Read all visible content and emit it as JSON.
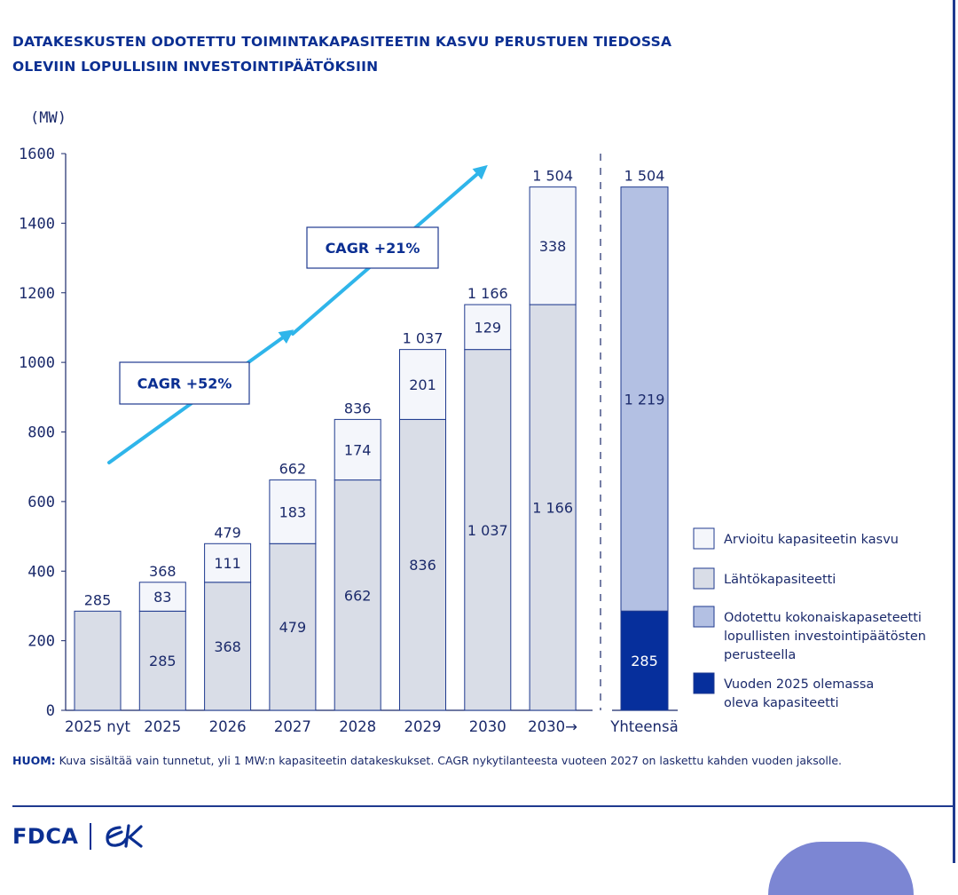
{
  "title": {
    "line1": "DATAKESKUSTEN ODOTETTU TOIMINTAKAPASITEETIN KASVU PERUSTUEN TIEDOSSA",
    "line2": "OLEVIIN LOPULLISIIN INVESTOINTIPÄÄTÖKSIIN"
  },
  "colors": {
    "title": "#0b2f92",
    "axis": "#1b2a6b",
    "base": "#d9dde7",
    "growth": "#f4f6fb",
    "expected": "#b3c0e3",
    "existing": "#062f9c",
    "outline": "#1f3a8f",
    "arrow": "#2fb5ea"
  },
  "chart_data": {
    "type": "bar",
    "stacked": true,
    "ylabel": "(MW)",
    "ylim": [
      0,
      1600
    ],
    "yticks": [
      0,
      200,
      400,
      600,
      800,
      1000,
      1200,
      1400,
      1600
    ],
    "categories": [
      "2025 nyt",
      "2025",
      "2026",
      "2027",
      "2028",
      "2029",
      "2030",
      "2030→"
    ],
    "series": [
      {
        "name": "Lähtökapasiteetti",
        "key": "base",
        "values": [
          285,
          285,
          368,
          479,
          662,
          836,
          1037,
          1166
        ]
      },
      {
        "name": "Arvioitu kapasiteetin kasvu",
        "key": "growth",
        "values": [
          0,
          83,
          111,
          183,
          174,
          201,
          129,
          338
        ]
      }
    ],
    "base_labels": [
      "",
      "285",
      "368",
      "479",
      "662",
      "836",
      "1 037",
      "1 166"
    ],
    "growth_labels": [
      "",
      "83",
      "111",
      "183",
      "174",
      "201",
      "129",
      "338"
    ],
    "totals": [
      "285",
      "368",
      "479",
      "662",
      "836",
      "1 037",
      "1 166",
      "1 504"
    ],
    "total_bar": {
      "category": "Yhteensä",
      "existing": 285,
      "expected": 1219,
      "existing_label": "285",
      "expected_label": "1 219",
      "total_label": "1 504"
    },
    "annotations": [
      {
        "text": "CAGR +52%"
      },
      {
        "text": "CAGR +21%"
      }
    ],
    "legend": [
      {
        "label": "Arvioitu kapasiteetin kasvu",
        "key": "growth"
      },
      {
        "label": "Lähtökapasiteetti",
        "key": "base"
      },
      {
        "label": "Odotettu kokonaiskapaseteetti lopullisten investointipäätösten perusteella",
        "key": "expected",
        "lines": [
          "Odotettu kokonaiskapaseteetti",
          "lopullisten investointipäätösten",
          "perusteella"
        ]
      },
      {
        "label": "Vuoden 2025 olemassa oleva kapasiteetti",
        "key": "existing",
        "lines": [
          "Vuoden 2025 olemassa",
          "oleva kapasiteetti"
        ]
      }
    ],
    "legend_position": "bottom-right"
  },
  "note": {
    "prefix": "HUOM:",
    "text": " Kuva sisältää vain tunnetut, yli 1 MW:n kapasiteetin datakeskukset. CAGR nykytilanteesta vuoteen 2027 on laskettu kahden vuoden jaksolle."
  },
  "logo": {
    "text": "FDCA",
    "mark": "eK"
  }
}
